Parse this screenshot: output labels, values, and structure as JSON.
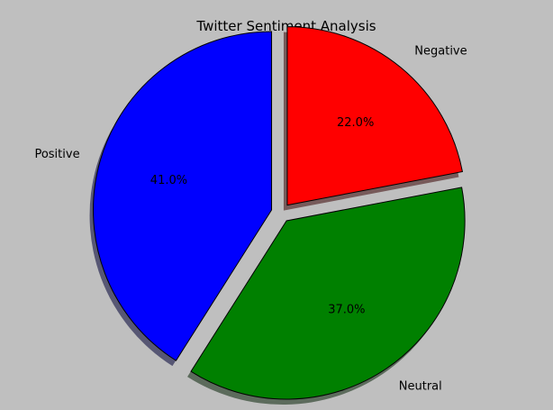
{
  "chart_data": {
    "type": "pie",
    "title": "Twitter Sentiment Analysis",
    "categories": [
      "Positive",
      "Neutral",
      "Negative"
    ],
    "values": [
      41.0,
      37.0,
      22.0
    ],
    "percent_labels": [
      "41.0%",
      "37.0%",
      "22.0%"
    ],
    "colors": [
      "#0000ff",
      "#008000",
      "#ff0000"
    ],
    "explode": [
      0.1,
      0.1,
      0.1
    ],
    "start_angle_deg": 90,
    "direction": "counterclockwise",
    "shadow": true,
    "background": "#bfbfbf",
    "legend": "none"
  }
}
